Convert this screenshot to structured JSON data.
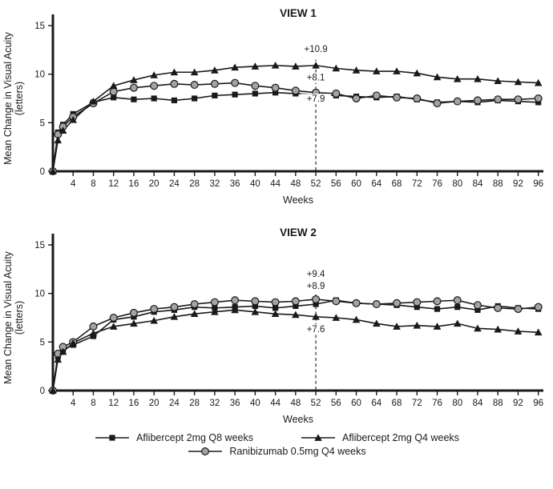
{
  "page": {
    "background": "#ffffff",
    "ink": "#1a1a1a",
    "circle_fill": "#a3a3a3"
  },
  "legend": {
    "items": [
      {
        "label": "Aflibercept 2mg Q8 weeks",
        "marker": "square"
      },
      {
        "label": "Aflibercept 2mg Q4 weeks",
        "marker": "triangle"
      },
      {
        "label": "Ranibizumab 0.5mg Q4 weeks",
        "marker": "circle"
      }
    ]
  },
  "chart_data": [
    {
      "type": "line",
      "title": "VIEW 1",
      "xlabel": "Weeks",
      "ylabel": "Mean Change in Visual Acuity (letters)",
      "ylabel_lines": [
        "Mean Change in Visual Acuity",
        "(letters)"
      ],
      "xlim": [
        0,
        97
      ],
      "ylim": [
        0,
        15
      ],
      "yticks": [
        0,
        5,
        10,
        15
      ],
      "xticks": [
        4,
        8,
        12,
        16,
        20,
        24,
        28,
        32,
        36,
        40,
        44,
        48,
        52,
        56,
        60,
        64,
        68,
        72,
        76,
        80,
        84,
        88,
        92,
        96
      ],
      "grid": false,
      "x": [
        0,
        1,
        2,
        4,
        8,
        12,
        16,
        20,
        24,
        28,
        32,
        36,
        40,
        44,
        48,
        52,
        56,
        60,
        64,
        68,
        72,
        76,
        80,
        84,
        88,
        92,
        96
      ],
      "series": [
        {
          "name": "Aflibercept 2mg Q8 weeks",
          "marker": "square",
          "values": [
            0,
            4.0,
            4.8,
            5.9,
            7.1,
            7.6,
            7.4,
            7.5,
            7.3,
            7.5,
            7.8,
            7.9,
            8.0,
            8.1,
            8.0,
            7.9,
            7.8,
            7.7,
            7.6,
            7.7,
            7.4,
            7.1,
            7.2,
            7.1,
            7.3,
            7.2,
            7.1
          ]
        },
        {
          "name": "Ranibizumab 0.5mg Q4 weeks",
          "marker": "circle",
          "values": [
            0,
            3.8,
            4.6,
            5.6,
            7.0,
            8.2,
            8.6,
            8.8,
            9.0,
            8.9,
            9.0,
            9.1,
            8.8,
            8.6,
            8.3,
            8.1,
            8.0,
            7.5,
            7.8,
            7.6,
            7.5,
            7.0,
            7.2,
            7.3,
            7.4,
            7.4,
            7.5
          ]
        },
        {
          "name": "Aflibercept 2mg Q4 weeks",
          "marker": "triangle",
          "values": [
            0,
            3.2,
            4.2,
            5.3,
            7.2,
            8.8,
            9.4,
            9.9,
            10.2,
            10.2,
            10.4,
            10.7,
            10.8,
            10.9,
            10.8,
            10.9,
            10.6,
            10.4,
            10.3,
            10.3,
            10.1,
            9.7,
            9.5,
            9.5,
            9.3,
            9.2,
            9.1
          ]
        }
      ],
      "marker_line": {
        "x": 52,
        "top": 11.5
      },
      "annotations": [
        {
          "text": "+10.9",
          "x": 52,
          "y": 12.3
        },
        {
          "text": "+8.1",
          "x": 52,
          "y": 9.35
        },
        {
          "text": "+7.9",
          "x": 52,
          "y": 7.15
        }
      ],
      "week52_values": {
        "Aflibercept 2mg Q4 weeks": 10.9,
        "Ranibizumab 0.5mg Q4 weeks": 8.1,
        "Aflibercept 2mg Q8 weeks": 7.9
      }
    },
    {
      "type": "line",
      "title": "VIEW 2",
      "xlabel": "Weeks",
      "ylabel": "Mean Change in Visual Acuity (letters)",
      "ylabel_lines": [
        "Mean Change in Visual Acuity",
        "(letters)"
      ],
      "xlim": [
        0,
        97
      ],
      "ylim": [
        0,
        15
      ],
      "yticks": [
        0,
        5,
        10,
        15
      ],
      "xticks": [
        4,
        8,
        12,
        16,
        20,
        24,
        28,
        32,
        36,
        40,
        44,
        48,
        52,
        56,
        60,
        64,
        68,
        72,
        76,
        80,
        84,
        88,
        92,
        96
      ],
      "grid": false,
      "x": [
        0,
        1,
        2,
        4,
        8,
        12,
        16,
        20,
        24,
        28,
        32,
        36,
        40,
        44,
        48,
        52,
        56,
        60,
        64,
        68,
        72,
        76,
        80,
        84,
        88,
        92,
        96
      ],
      "series": [
        {
          "name": "Aflibercept 2mg Q8 weeks",
          "marker": "square",
          "values": [
            0,
            3.5,
            4.2,
            4.7,
            5.6,
            7.3,
            7.6,
            8.1,
            8.3,
            8.6,
            8.5,
            8.6,
            8.7,
            8.5,
            8.7,
            8.9,
            9.3,
            9.0,
            8.9,
            8.8,
            8.6,
            8.4,
            8.6,
            8.3,
            8.7,
            8.5,
            8.4
          ]
        },
        {
          "name": "Ranibizumab 0.5mg Q4 weeks",
          "marker": "circle",
          "values": [
            0,
            3.8,
            4.5,
            5.0,
            6.6,
            7.5,
            8.0,
            8.4,
            8.6,
            8.9,
            9.1,
            9.3,
            9.2,
            9.1,
            9.2,
            9.4,
            9.2,
            9.0,
            8.9,
            9.0,
            9.1,
            9.2,
            9.3,
            8.8,
            8.5,
            8.4,
            8.6
          ]
        },
        {
          "name": "Aflibercept 2mg Q4 weeks",
          "marker": "triangle",
          "values": [
            0,
            3.2,
            4.0,
            4.9,
            5.9,
            6.6,
            6.9,
            7.2,
            7.6,
            7.9,
            8.1,
            8.3,
            8.1,
            7.9,
            7.8,
            7.6,
            7.5,
            7.3,
            6.9,
            6.6,
            6.7,
            6.6,
            6.9,
            6.4,
            6.3,
            6.1,
            6.0
          ]
        }
      ],
      "marker_line": {
        "x": 52,
        "top": 10.0
      },
      "annotations": [
        {
          "text": "+9.4",
          "x": 52,
          "y": 11.7
        },
        {
          "text": "+8.9",
          "x": 52,
          "y": 10.45
        },
        {
          "text": "+7.6",
          "x": 52,
          "y": 6.0
        }
      ],
      "week52_values": {
        "Ranibizumab 0.5mg Q4 weeks": 9.4,
        "Aflibercept 2mg Q8 weeks": 8.9,
        "Aflibercept 2mg Q4 weeks": 7.6
      }
    }
  ]
}
